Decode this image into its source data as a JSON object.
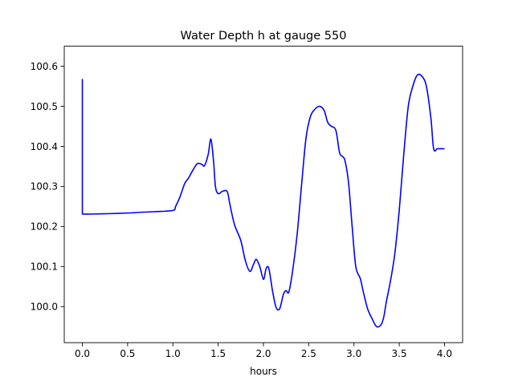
{
  "chart_data": {
    "type": "line",
    "title": "Water Depth h at gauge 550",
    "xlabel": "hours",
    "ylabel": "",
    "xlim": [
      -0.2,
      4.2
    ],
    "ylim": [
      99.91,
      100.65
    ],
    "xticks": [
      0.0,
      0.5,
      1.0,
      1.5,
      2.0,
      2.5,
      3.0,
      3.5,
      4.0
    ],
    "xtick_labels": [
      "0.0",
      "0.5",
      "1.0",
      "1.5",
      "2.0",
      "2.5",
      "3.0",
      "3.5",
      "4.0"
    ],
    "yticks": [
      100.0,
      100.1,
      100.2,
      100.3,
      100.4,
      100.5,
      100.6
    ],
    "ytick_labels": [
      "100.0",
      "100.1",
      "100.2",
      "100.3",
      "100.4",
      "100.5",
      "100.6"
    ],
    "grid": false,
    "series": [
      {
        "color": "#0000ff",
        "x": [
          0.0,
          0.0,
          0.0,
          0.1,
          0.3,
          0.55,
          0.6,
          0.8,
          1.0,
          1.03,
          1.08,
          1.13,
          1.17,
          1.22,
          1.27,
          1.32,
          1.35,
          1.39,
          1.42,
          1.45,
          1.47,
          1.5,
          1.55,
          1.6,
          1.63,
          1.68,
          1.75,
          1.8,
          1.85,
          1.89,
          1.92,
          1.96,
          2.0,
          2.03,
          2.06,
          2.1,
          2.14,
          2.18,
          2.22,
          2.25,
          2.28,
          2.32,
          2.37,
          2.42,
          2.47,
          2.52,
          2.57,
          2.62,
          2.67,
          2.71,
          2.75,
          2.8,
          2.84,
          2.87,
          2.9,
          2.94,
          2.98,
          3.02,
          3.07,
          3.1,
          3.15,
          3.2,
          3.25,
          3.3,
          3.33,
          3.36,
          3.4,
          3.45,
          3.5,
          3.55,
          3.6,
          3.65,
          3.7,
          3.75,
          3.8,
          3.85,
          3.88,
          3.92,
          3.96,
          4.0
        ],
        "y": [
          100.568,
          100.4,
          100.231,
          100.231,
          100.232,
          100.234,
          100.235,
          100.237,
          100.24,
          100.25,
          100.275,
          100.307,
          100.32,
          100.34,
          100.357,
          100.355,
          100.352,
          100.38,
          100.418,
          100.36,
          100.3,
          100.282,
          100.288,
          100.287,
          100.255,
          100.205,
          100.165,
          100.115,
          100.088,
          100.105,
          100.118,
          100.1,
          100.068,
          100.095,
          100.095,
          100.04,
          99.998,
          99.995,
          100.03,
          100.04,
          100.036,
          100.085,
          100.175,
          100.3,
          100.42,
          100.475,
          100.493,
          100.5,
          100.49,
          100.46,
          100.45,
          100.44,
          100.385,
          100.375,
          100.365,
          100.31,
          100.2,
          100.1,
          100.07,
          100.04,
          99.995,
          99.97,
          99.95,
          99.955,
          99.975,
          100.015,
          100.06,
          100.13,
          100.24,
          100.38,
          100.5,
          100.55,
          100.578,
          100.575,
          100.55,
          100.47,
          100.394,
          100.394,
          100.394,
          100.394
        ]
      }
    ]
  }
}
